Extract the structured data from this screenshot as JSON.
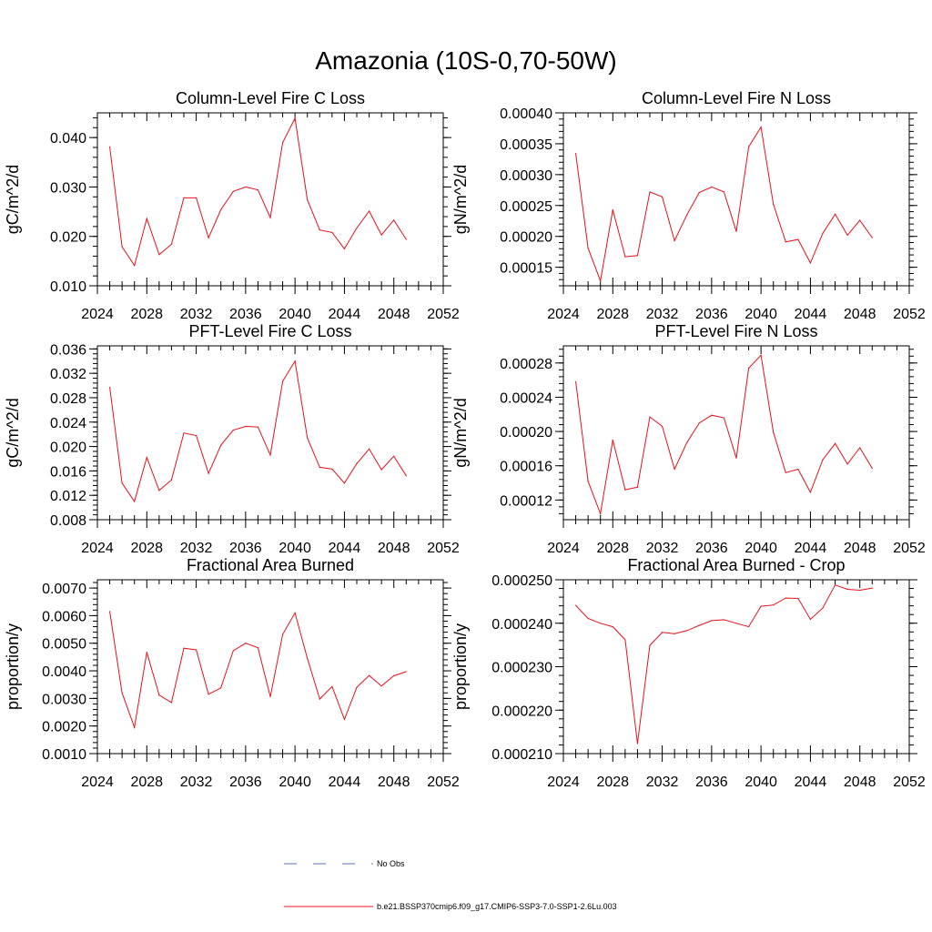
{
  "figure": {
    "title": "Amazonia (10S-0,70-50W)",
    "legend": [
      {
        "label": "No Obs",
        "style": "dashed",
        "color": "#5a6fb8"
      },
      {
        "label": "b.e21.BSSP370cmip6.f09_g17.CMIP6-SSP3-7.0-SSP1-2.6Lu.003",
        "style": "solid",
        "color": "#e8101a"
      }
    ]
  },
  "chart_data": [
    {
      "type": "line",
      "title": "Column-Level Fire C Loss",
      "ylabel": "gC/m^2/d",
      "xlim": [
        2024,
        2052
      ],
      "ylim": [
        0.01,
        0.045
      ],
      "xticks": [
        "2024",
        "2028",
        "2032",
        "2036",
        "2040",
        "2044",
        "2048",
        "2052"
      ],
      "yticks": [
        "0.010",
        "0.020",
        "0.030",
        "0.040"
      ],
      "yticks_values": [
        0.01,
        0.02,
        0.03,
        0.04
      ],
      "x": [
        2025,
        2026,
        2027,
        2028,
        2029,
        2030,
        2031,
        2032,
        2033,
        2034,
        2035,
        2036,
        2037,
        2038,
        2039,
        2040,
        2041,
        2042,
        2043,
        2044,
        2045,
        2046,
        2047,
        2048,
        2049
      ],
      "series": [
        {
          "name": "b.e21.BSSP370cmip6.f09_g17.CMIP6-SSP3-7.0-SSP1-2.6Lu.003",
          "values": [
            0.0381,
            0.0179,
            0.0141,
            0.0236,
            0.0163,
            0.0184,
            0.0278,
            0.0278,
            0.0197,
            0.0254,
            0.0291,
            0.03,
            0.0294,
            0.0238,
            0.039,
            0.0439,
            0.0274,
            0.0213,
            0.0208,
            0.0175,
            0.0217,
            0.0251,
            0.0203,
            0.0233,
            0.0194
          ]
        }
      ]
    },
    {
      "type": "line",
      "title": "Column-Level Fire N Loss",
      "ylabel": "gN/m^2/d",
      "xlim": [
        2024,
        2052
      ],
      "ylim": [
        0.00012,
        0.0004
      ],
      "xticks": [
        "2024",
        "2028",
        "2032",
        "2036",
        "2040",
        "2044",
        "2048",
        "2052"
      ],
      "yticks": [
        "0.00015",
        "0.00020",
        "0.00025",
        "0.00030",
        "0.00035",
        "0.00040"
      ],
      "yticks_values": [
        0.00015,
        0.0002,
        0.00025,
        0.0003,
        0.00035,
        0.0004
      ],
      "x": [
        2025,
        2026,
        2027,
        2028,
        2029,
        2030,
        2031,
        2032,
        2033,
        2034,
        2035,
        2036,
        2037,
        2038,
        2039,
        2040,
        2041,
        2042,
        2043,
        2044,
        2045,
        2046,
        2047,
        2048,
        2049
      ],
      "series": [
        {
          "name": "b.e21.BSSP370cmip6.f09_g17.CMIP6-SSP3-7.0-SSP1-2.6Lu.003",
          "values": [
            0.000334,
            0.000181,
            0.000128,
            0.000243,
            0.000167,
            0.000169,
            0.000272,
            0.000264,
            0.000193,
            0.000235,
            0.000271,
            0.00028,
            0.000272,
            0.000208,
            0.000345,
            0.000377,
            0.000252,
            0.000191,
            0.000195,
            0.000157,
            0.000205,
            0.000236,
            0.000202,
            0.000226,
            0.000198
          ]
        }
      ]
    },
    {
      "type": "line",
      "title": "PFT-Level Fire C Loss",
      "ylabel": "gC/m^2/d",
      "xlim": [
        2024,
        2052
      ],
      "ylim": [
        0.008,
        0.0365
      ],
      "xticks": [
        "2024",
        "2028",
        "2032",
        "2036",
        "2040",
        "2044",
        "2048",
        "2052"
      ],
      "yticks": [
        "0.008",
        "0.012",
        "0.016",
        "0.020",
        "0.024",
        "0.028",
        "0.032",
        "0.036"
      ],
      "yticks_values": [
        0.008,
        0.012,
        0.016,
        0.02,
        0.024,
        0.028,
        0.032,
        0.036
      ],
      "x": [
        2025,
        2026,
        2027,
        2028,
        2029,
        2030,
        2031,
        2032,
        2033,
        2034,
        2035,
        2036,
        2037,
        2038,
        2039,
        2040,
        2041,
        2042,
        2043,
        2044,
        2045,
        2046,
        2047,
        2048,
        2049
      ],
      "series": [
        {
          "name": "b.e21.BSSP370cmip6.f09_g17.CMIP6-SSP3-7.0-SSP1-2.6Lu.003",
          "values": [
            0.0297,
            0.014,
            0.011,
            0.0182,
            0.0128,
            0.0145,
            0.0222,
            0.0218,
            0.0156,
            0.0202,
            0.0227,
            0.0233,
            0.0232,
            0.0186,
            0.0307,
            0.034,
            0.0214,
            0.0166,
            0.0163,
            0.014,
            0.0172,
            0.0196,
            0.0162,
            0.0184,
            0.0152
          ]
        }
      ]
    },
    {
      "type": "line",
      "title": "PFT-Level Fire N Loss",
      "ylabel": "gN/m^2/d",
      "xlim": [
        2024,
        2052
      ],
      "ylim": [
        9.7e-05,
        0.0003
      ],
      "xticks": [
        "2024",
        "2028",
        "2032",
        "2036",
        "2040",
        "2044",
        "2048",
        "2052"
      ],
      "yticks": [
        "0.00012",
        "0.00016",
        "0.00020",
        "0.00024",
        "0.00028"
      ],
      "yticks_values": [
        0.00012,
        0.00016,
        0.0002,
        0.00024,
        0.00028
      ],
      "x": [
        2025,
        2026,
        2027,
        2028,
        2029,
        2030,
        2031,
        2032,
        2033,
        2034,
        2035,
        2036,
        2037,
        2038,
        2039,
        2040,
        2041,
        2042,
        2043,
        2044,
        2045,
        2046,
        2047,
        2048,
        2049
      ],
      "series": [
        {
          "name": "b.e21.BSSP370cmip6.f09_g17.CMIP6-SSP3-7.0-SSP1-2.6Lu.003",
          "values": [
            0.000258,
            0.000142,
            0.000104,
            0.00019,
            0.000132,
            0.000135,
            0.000217,
            0.000206,
            0.000156,
            0.000187,
            0.00021,
            0.000219,
            0.000216,
            0.000169,
            0.000274,
            0.000289,
            0.000199,
            0.000152,
            0.000156,
            0.000129,
            0.000167,
            0.000186,
            0.000162,
            0.000181,
            0.000157
          ]
        }
      ]
    },
    {
      "type": "line",
      "title": "Fractional Area Burned",
      "ylabel": "proportion/y",
      "xlim": [
        2024,
        2052
      ],
      "ylim": [
        0.001,
        0.0073
      ],
      "xticks": [
        "2024",
        "2028",
        "2032",
        "2036",
        "2040",
        "2044",
        "2048",
        "2052"
      ],
      "yticks": [
        "0.0010",
        "0.0020",
        "0.0030",
        "0.0040",
        "0.0050",
        "0.0060",
        "0.0070"
      ],
      "yticks_values": [
        0.001,
        0.002,
        0.003,
        0.004,
        0.005,
        0.006,
        0.007
      ],
      "x": [
        2025,
        2026,
        2027,
        2028,
        2029,
        2030,
        2031,
        2032,
        2033,
        2034,
        2035,
        2036,
        2037,
        2038,
        2039,
        2040,
        2041,
        2042,
        2043,
        2044,
        2045,
        2046,
        2047,
        2048,
        2049
      ],
      "series": [
        {
          "name": "b.e21.BSSP370cmip6.f09_g17.CMIP6-SSP3-7.0-SSP1-2.6Lu.003",
          "values": [
            0.00615,
            0.0032,
            0.00195,
            0.00467,
            0.00312,
            0.00285,
            0.00482,
            0.00476,
            0.00315,
            0.00338,
            0.00473,
            0.005,
            0.00484,
            0.00306,
            0.00532,
            0.0061,
            0.00445,
            0.00298,
            0.00343,
            0.00224,
            0.0034,
            0.00383,
            0.00345,
            0.00382,
            0.00397
          ]
        }
      ]
    },
    {
      "type": "line",
      "title": "Fractional Area Burned - Crop",
      "ylabel": "proportion/y",
      "xlim": [
        2024,
        2052
      ],
      "ylim": [
        0.00021,
        0.00025
      ],
      "xticks": [
        "2024",
        "2028",
        "2032",
        "2036",
        "2040",
        "2044",
        "2048",
        "2052"
      ],
      "yticks": [
        "0.000210",
        "0.000220",
        "0.000230",
        "0.000240",
        "0.000250"
      ],
      "yticks_values": [
        0.00021,
        0.00022,
        0.00023,
        0.00024,
        0.00025
      ],
      "x": [
        2025,
        2026,
        2027,
        2028,
        2029,
        2030,
        2031,
        2032,
        2033,
        2034,
        2035,
        2036,
        2037,
        2038,
        2039,
        2040,
        2041,
        2042,
        2043,
        2044,
        2045,
        2046,
        2047,
        2048,
        2049
      ],
      "series": [
        {
          "name": "b.e21.BSSP370cmip6.f09_g17.CMIP6-SSP3-7.0-SSP1-2.6Lu.003",
          "values": [
            0.0002441,
            0.0002411,
            0.00024,
            0.0002392,
            0.0002362,
            0.0002123,
            0.0002349,
            0.0002379,
            0.0002376,
            0.0002383,
            0.0002395,
            0.0002406,
            0.0002408,
            0.00024,
            0.0002392,
            0.0002439,
            0.0002442,
            0.0002458,
            0.0002457,
            0.0002409,
            0.0002435,
            0.0002488,
            0.0002478,
            0.0002476,
            0.0002481
          ]
        }
      ]
    }
  ]
}
